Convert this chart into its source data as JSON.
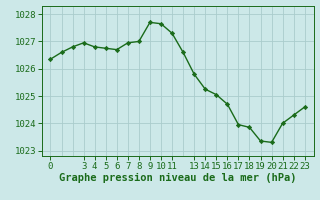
{
  "x": [
    0,
    1,
    2,
    3,
    4,
    5,
    6,
    7,
    8,
    9,
    10,
    11,
    12,
    13,
    14,
    15,
    16,
    17,
    18,
    19,
    20,
    21,
    22,
    23
  ],
  "y": [
    1026.35,
    1026.6,
    1026.8,
    1026.95,
    1026.8,
    1026.75,
    1026.7,
    1026.95,
    1027.0,
    1027.7,
    1027.65,
    1027.3,
    1026.6,
    1025.8,
    1025.25,
    1025.05,
    1024.7,
    1023.95,
    1023.85,
    1023.35,
    1023.3,
    1024.0,
    1024.3,
    1024.6
  ],
  "line_color": "#1a6b1a",
  "marker": "D",
  "marker_size": 2.2,
  "bg_color": "#cce8e8",
  "grid_color": "#aacccc",
  "xlabel": "Graphe pression niveau de la mer (hPa)",
  "xlabel_fontsize": 7.5,
  "ylim": [
    1022.8,
    1028.3
  ],
  "yticks": [
    1023,
    1024,
    1025,
    1026,
    1027,
    1028
  ],
  "xticks": [
    0,
    3,
    4,
    5,
    6,
    7,
    8,
    9,
    10,
    11,
    13,
    14,
    15,
    16,
    17,
    18,
    19,
    20,
    21,
    22,
    23
  ],
  "tick_fontsize": 6.5,
  "line_width": 1.0
}
